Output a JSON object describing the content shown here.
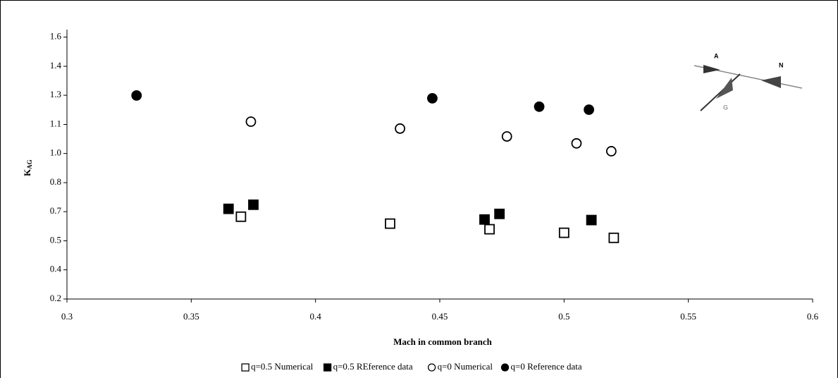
{
  "chart_data": {
    "type": "scatter",
    "xlabel": "Mach in common branch",
    "ylabel": "K",
    "ylabel_subscript": "AG",
    "xlim": [
      0.3,
      0.6
    ],
    "xticks": [
      0.3,
      0.35,
      0.4,
      0.45,
      0.5,
      0.55,
      0.6
    ],
    "ylim": [
      0.2,
      1.64
    ],
    "yticks": [
      0.2,
      {
        "value": 0.356,
        "label": "0.4"
      },
      {
        "value": 0.511,
        "label": "0.5"
      },
      {
        "value": 0.667,
        "label": "0.7"
      },
      {
        "value": 0.822,
        "label": "0.8"
      },
      {
        "value": 0.978,
        "label": "1.0"
      },
      {
        "value": 1.133,
        "label": "1.1"
      },
      {
        "value": 1.289,
        "label": "1.3"
      },
      {
        "value": 1.444,
        "label": "1.4"
      },
      1.6
    ],
    "legend": "bottom",
    "series": [
      {
        "name": "q=0.5 Numerical",
        "color": "#000000",
        "marker": "square",
        "filled": false,
        "x": [
          0.37,
          0.43,
          0.47,
          0.5,
          0.52
        ],
        "values": [
          0.64,
          0.603,
          0.573,
          0.554,
          0.527
        ]
      },
      {
        "name": "q=0.5 REference data",
        "color": "#000000",
        "marker": "square",
        "filled": true,
        "x": [
          0.365,
          0.375,
          0.468,
          0.474,
          0.511
        ],
        "values": [
          0.682,
          0.704,
          0.625,
          0.655,
          0.622
        ]
      },
      {
        "name": "q=0 Numerical",
        "color": "#000000",
        "marker": "circle",
        "filled": false,
        "x": [
          0.374,
          0.434,
          0.477,
          0.505,
          0.519
        ],
        "values": [
          1.148,
          1.111,
          1.069,
          1.032,
          0.99
        ]
      },
      {
        "name": "q=0 Reference data",
        "color": "#000000",
        "marker": "circle",
        "filled": true,
        "x": [
          0.328,
          0.447,
          0.49,
          0.51
        ],
        "values": [
          1.288,
          1.273,
          1.228,
          1.212
        ]
      }
    ],
    "inset_labels": [
      "A",
      "N",
      "G"
    ]
  }
}
